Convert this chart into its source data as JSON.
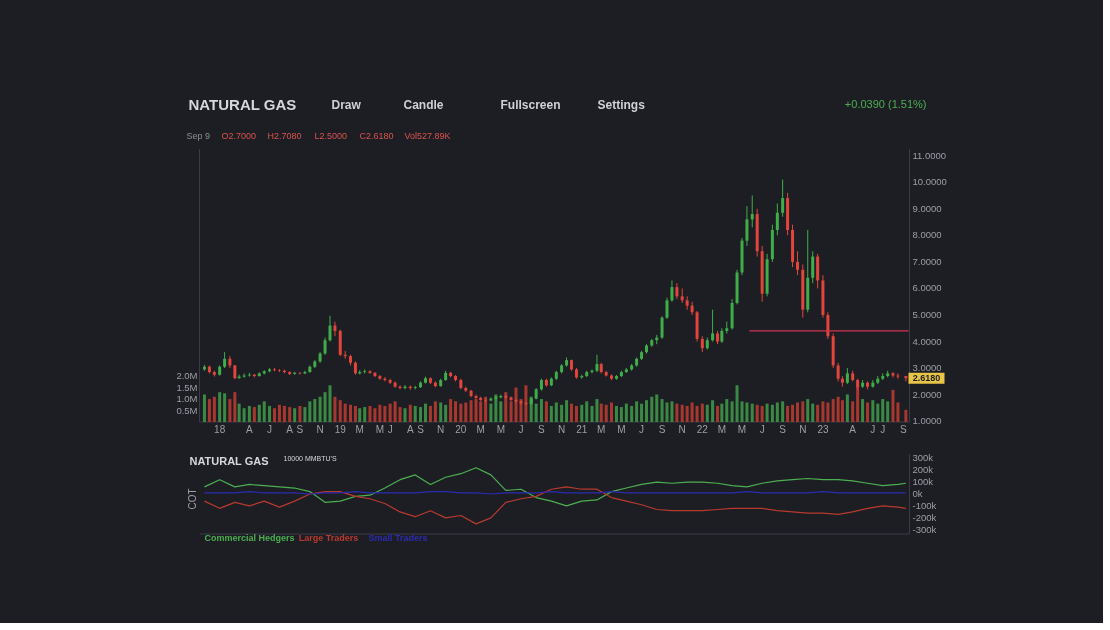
{
  "chart_data": [
    {
      "type": "candlestick",
      "title": "NATURAL GAS",
      "annotations": [
        "Draw",
        "Candle",
        "Fullscreen",
        "Settings",
        "+0.0390 (1.51%)",
        "Sep 9",
        "O2.7000",
        "H2.7080",
        "L2.5000",
        "C2.6180",
        "Vol527.89K",
        {
          "text": "2.6180",
          "y": 2.618
        }
      ],
      "x": [
        "2017-11-16",
        "2017-12-01",
        "2017-12-16",
        "2018-01-01",
        "2018-01-16",
        "2018-02-01",
        "2018-02-16",
        "2018-03-01",
        "2018-03-16",
        "2018-04-01",
        "2018-04-16",
        "2018-05-01",
        "2018-05-16",
        "2018-06-01",
        "2018-06-16",
        "2018-07-01",
        "2018-07-16",
        "2018-08-01",
        "2018-08-16",
        "2018-09-01",
        "2018-09-16",
        "2018-10-01",
        "2018-10-16",
        "2018-11-01",
        "2018-11-16",
        "2018-12-01",
        "2018-12-16",
        "2019-01-01",
        "2019-01-16",
        "2019-02-01",
        "2019-02-16",
        "2019-03-01",
        "2019-03-16",
        "2019-04-01",
        "2019-04-16",
        "2019-05-01",
        "2019-05-16",
        "2019-06-01",
        "2019-06-16",
        "2019-07-01",
        "2019-07-16",
        "2019-08-01",
        "2019-08-16",
        "2019-09-01",
        "2019-09-16",
        "2019-10-01",
        "2019-10-16",
        "2019-11-01",
        "2019-11-16",
        "2019-12-01",
        "2019-12-16",
        "2020-01-01",
        "2020-01-16",
        "2020-02-01",
        "2020-02-16",
        "2020-03-01",
        "2020-03-16",
        "2020-04-01",
        "2020-04-16",
        "2020-05-01",
        "2020-05-16",
        "2020-06-01",
        "2020-06-16",
        "2020-07-01",
        "2020-07-16",
        "2020-08-01",
        "2020-08-16",
        "2020-09-01",
        "2020-09-16",
        "2020-10-01",
        "2020-10-16",
        "2020-11-01",
        "2020-11-16",
        "2020-12-01",
        "2020-12-16",
        "2021-01-01",
        "2021-01-16",
        "2021-02-01",
        "2021-02-16",
        "2021-03-01",
        "2021-03-16",
        "2021-04-01",
        "2021-04-16",
        "2021-05-01",
        "2021-05-16",
        "2021-06-01",
        "2021-06-16",
        "2021-07-01",
        "2021-07-16",
        "2021-08-01",
        "2021-08-16",
        "2021-09-01",
        "2021-09-16",
        "2021-10-01",
        "2021-10-16",
        "2021-11-01",
        "2021-11-16",
        "2021-12-01",
        "2021-12-16",
        "2022-01-01",
        "2022-01-16",
        "2022-02-01",
        "2022-02-16",
        "2022-03-01",
        "2022-03-16",
        "2022-04-01",
        "2022-04-16",
        "2022-05-01",
        "2022-05-16",
        "2022-06-01",
        "2022-06-16",
        "2022-07-01",
        "2022-07-16",
        "2022-08-01",
        "2022-08-16",
        "2022-09-01",
        "2022-09-16",
        "2022-10-01",
        "2022-10-16",
        "2022-11-01",
        "2022-11-16",
        "2022-12-01",
        "2022-12-16",
        "2023-01-01",
        "2023-01-16",
        "2023-02-01",
        "2023-02-16",
        "2023-03-01",
        "2023-03-16",
        "2023-04-01",
        "2023-04-16",
        "2023-05-01",
        "2023-05-16",
        "2023-06-01",
        "2023-06-16",
        "2023-07-01",
        "2023-07-16",
        "2023-08-01",
        "2023-08-16",
        "2023-09-09"
      ],
      "ohlc": [
        [
          2.95,
          3.12,
          2.9,
          3.05
        ],
        [
          3.05,
          3.1,
          2.8,
          2.85
        ],
        [
          2.85,
          2.9,
          2.68,
          2.75
        ],
        [
          2.75,
          3.1,
          2.72,
          3.05
        ],
        [
          3.05,
          3.6,
          3.0,
          3.35
        ],
        [
          3.35,
          3.45,
          3.0,
          3.1
        ],
        [
          3.1,
          3.12,
          2.58,
          2.62
        ],
        [
          2.62,
          2.75,
          2.6,
          2.68
        ],
        [
          2.68,
          2.8,
          2.64,
          2.72
        ],
        [
          2.72,
          2.82,
          2.68,
          2.75
        ],
        [
          2.75,
          2.78,
          2.65,
          2.7
        ],
        [
          2.7,
          2.84,
          2.68,
          2.8
        ],
        [
          2.8,
          2.92,
          2.76,
          2.88
        ],
        [
          2.88,
          3.0,
          2.84,
          2.95
        ],
        [
          2.95,
          3.0,
          2.88,
          2.92
        ],
        [
          2.92,
          2.96,
          2.85,
          2.9
        ],
        [
          2.9,
          2.94,
          2.8,
          2.85
        ],
        [
          2.85,
          2.88,
          2.74,
          2.78
        ],
        [
          2.78,
          2.86,
          2.75,
          2.82
        ],
        [
          2.82,
          2.85,
          2.76,
          2.8
        ],
        [
          2.8,
          2.9,
          2.77,
          2.85
        ],
        [
          2.85,
          3.1,
          2.83,
          3.05
        ],
        [
          3.05,
          3.3,
          3.0,
          3.25
        ],
        [
          3.25,
          3.6,
          3.2,
          3.55
        ],
        [
          3.55,
          4.15,
          3.5,
          4.05
        ],
        [
          4.05,
          4.97,
          4.0,
          4.6
        ],
        [
          4.6,
          4.75,
          4.2,
          4.4
        ],
        [
          4.4,
          4.45,
          3.45,
          3.5
        ],
        [
          3.5,
          3.65,
          3.35,
          3.45
        ],
        [
          3.45,
          3.5,
          3.1,
          3.2
        ],
        [
          3.2,
          3.25,
          2.75,
          2.8
        ],
        [
          2.8,
          2.92,
          2.76,
          2.85
        ],
        [
          2.85,
          2.95,
          2.8,
          2.88
        ],
        [
          2.88,
          2.92,
          2.78,
          2.82
        ],
        [
          2.82,
          2.85,
          2.66,
          2.7
        ],
        [
          2.7,
          2.74,
          2.56,
          2.6
        ],
        [
          2.6,
          2.66,
          2.5,
          2.55
        ],
        [
          2.55,
          2.6,
          2.4,
          2.45
        ],
        [
          2.45,
          2.5,
          2.26,
          2.3
        ],
        [
          2.3,
          2.35,
          2.2,
          2.25
        ],
        [
          2.25,
          2.36,
          2.2,
          2.3
        ],
        [
          2.3,
          2.34,
          2.18,
          2.25
        ],
        [
          2.25,
          2.33,
          2.2,
          2.28
        ],
        [
          2.28,
          2.5,
          2.25,
          2.45
        ],
        [
          2.45,
          2.68,
          2.42,
          2.62
        ],
        [
          2.62,
          2.65,
          2.4,
          2.45
        ],
        [
          2.45,
          2.5,
          2.28,
          2.32
        ],
        [
          2.32,
          2.6,
          2.3,
          2.55
        ],
        [
          2.55,
          2.9,
          2.52,
          2.82
        ],
        [
          2.82,
          2.86,
          2.65,
          2.7
        ],
        [
          2.7,
          2.74,
          2.5,
          2.55
        ],
        [
          2.55,
          2.6,
          2.2,
          2.25
        ],
        [
          2.25,
          2.3,
          2.1,
          2.15
        ],
        [
          2.15,
          2.18,
          1.9,
          1.95
        ],
        [
          1.95,
          2.0,
          1.84,
          1.88
        ],
        [
          1.88,
          1.92,
          1.76,
          1.8
        ],
        [
          1.8,
          1.84,
          1.72,
          1.78
        ],
        [
          1.78,
          1.9,
          1.75,
          1.85
        ],
        [
          1.85,
          1.95,
          1.82,
          1.9
        ],
        [
          1.9,
          2.0,
          1.86,
          1.95
        ],
        [
          1.95,
          1.98,
          1.85,
          1.9
        ],
        [
          1.9,
          1.93,
          1.76,
          1.8
        ],
        [
          1.8,
          1.84,
          1.7,
          1.75
        ],
        [
          1.75,
          1.78,
          1.62,
          1.68
        ],
        [
          1.68,
          1.72,
          1.6,
          1.65
        ],
        [
          1.65,
          1.9,
          1.62,
          1.85
        ],
        [
          1.85,
          2.25,
          1.82,
          2.2
        ],
        [
          2.2,
          2.6,
          2.15,
          2.55
        ],
        [
          2.55,
          2.6,
          2.3,
          2.35
        ],
        [
          2.35,
          2.65,
          2.32,
          2.6
        ],
        [
          2.6,
          2.9,
          2.55,
          2.85
        ],
        [
          2.85,
          3.15,
          2.8,
          3.1
        ],
        [
          3.1,
          3.4,
          3.05,
          3.3
        ],
        [
          3.3,
          3.32,
          2.9,
          2.95
        ],
        [
          2.95,
          3.0,
          2.6,
          2.65
        ],
        [
          2.65,
          2.75,
          2.6,
          2.7
        ],
        [
          2.7,
          2.9,
          2.66,
          2.85
        ],
        [
          2.85,
          2.95,
          2.8,
          2.9
        ],
        [
          2.9,
          3.5,
          2.85,
          3.15
        ],
        [
          3.15,
          3.2,
          2.8,
          2.85
        ],
        [
          2.85,
          2.9,
          2.68,
          2.72
        ],
        [
          2.72,
          2.76,
          2.55,
          2.6
        ],
        [
          2.6,
          2.74,
          2.56,
          2.7
        ],
        [
          2.7,
          2.9,
          2.66,
          2.85
        ],
        [
          2.85,
          3.0,
          2.82,
          2.95
        ],
        [
          2.95,
          3.15,
          2.9,
          3.1
        ],
        [
          3.1,
          3.4,
          3.05,
          3.35
        ],
        [
          3.35,
          3.65,
          3.3,
          3.6
        ],
        [
          3.6,
          3.9,
          3.55,
          3.85
        ],
        [
          3.85,
          4.1,
          3.8,
          4.05
        ],
        [
          4.05,
          4.25,
          3.9,
          4.15
        ],
        [
          4.15,
          4.95,
          4.1,
          4.9
        ],
        [
          4.9,
          5.65,
          4.85,
          5.55
        ],
        [
          5.55,
          6.3,
          5.5,
          6.05
        ],
        [
          6.05,
          6.2,
          5.6,
          5.7
        ],
        [
          5.7,
          6.0,
          5.45,
          5.55
        ],
        [
          5.55,
          5.7,
          5.2,
          5.35
        ],
        [
          5.35,
          5.5,
          5.0,
          5.1
        ],
        [
          5.1,
          5.15,
          4.0,
          4.1
        ],
        [
          4.1,
          4.2,
          3.6,
          3.75
        ],
        [
          3.75,
          4.15,
          3.7,
          4.05
        ],
        [
          4.05,
          5.2,
          4.0,
          4.3
        ],
        [
          4.3,
          4.4,
          3.9,
          4.0
        ],
        [
          4.0,
          4.5,
          3.95,
          4.4
        ],
        [
          4.4,
          4.75,
          4.3,
          4.5
        ],
        [
          4.5,
          5.6,
          4.45,
          5.45
        ],
        [
          5.45,
          6.7,
          5.4,
          6.6
        ],
        [
          6.6,
          7.9,
          6.5,
          7.8
        ],
        [
          7.8,
          9.1,
          7.6,
          8.6
        ],
        [
          8.6,
          9.5,
          8.3,
          8.8
        ],
        [
          8.8,
          9.0,
          7.2,
          7.4
        ],
        [
          7.4,
          7.6,
          5.5,
          5.8
        ],
        [
          5.8,
          7.3,
          5.7,
          7.1
        ],
        [
          7.1,
          8.4,
          7.0,
          8.2
        ],
        [
          8.2,
          9.2,
          8.0,
          8.85
        ],
        [
          8.85,
          10.1,
          8.7,
          9.4
        ],
        [
          9.4,
          9.6,
          8.0,
          8.2
        ],
        [
          8.2,
          8.4,
          6.8,
          7.0
        ],
        [
          7.0,
          7.4,
          6.5,
          6.7
        ],
        [
          6.7,
          6.9,
          4.9,
          5.2
        ],
        [
          5.2,
          8.2,
          5.1,
          6.4
        ],
        [
          6.4,
          7.4,
          6.2,
          7.2
        ],
        [
          7.2,
          7.3,
          6.0,
          6.3
        ],
        [
          6.3,
          6.5,
          4.9,
          5.0
        ],
        [
          5.0,
          5.1,
          4.1,
          4.2
        ],
        [
          4.2,
          4.3,
          3.0,
          3.1
        ],
        [
          3.1,
          3.2,
          2.5,
          2.6
        ],
        [
          2.6,
          2.7,
          2.3,
          2.45
        ],
        [
          2.45,
          3.0,
          2.4,
          2.8
        ],
        [
          2.8,
          2.9,
          2.5,
          2.55
        ],
        [
          2.55,
          2.6,
          2.2,
          2.3
        ],
        [
          2.3,
          2.55,
          2.25,
          2.45
        ],
        [
          2.45,
          2.5,
          2.2,
          2.3
        ],
        [
          2.3,
          2.55,
          2.26,
          2.45
        ],
        [
          2.45,
          2.7,
          2.4,
          2.6
        ],
        [
          2.6,
          2.8,
          2.55,
          2.7
        ],
        [
          2.7,
          2.9,
          2.65,
          2.8
        ],
        [
          2.8,
          2.85,
          2.65,
          2.72
        ],
        [
          2.72,
          2.8,
          2.6,
          2.68
        ],
        [
          2.7,
          2.708,
          2.5,
          2.618
        ]
      ],
      "colors": [
        "#3fae49",
        "#e2453c",
        "#e2453c",
        "#3fae49",
        "#3fae49",
        "#e2453c",
        "#e2453c",
        "#3fae49",
        "#3fae49",
        "#3fae49",
        "#e2453c",
        "#3fae49",
        "#3fae49",
        "#3fae49",
        "#e2453c",
        "#e2453c",
        "#e2453c",
        "#e2453c",
        "#3fae49",
        "#e2453c",
        "#3fae49",
        "#3fae49",
        "#3fae49",
        "#3fae49",
        "#3fae49",
        "#3fae49",
        "#e2453c",
        "#e2453c",
        "#e2453c",
        "#e2453c",
        "#e2453c",
        "#3fae49",
        "#3fae49",
        "#e2453c",
        "#e2453c",
        "#e2453c",
        "#e2453c",
        "#e2453c",
        "#e2453c",
        "#e2453c",
        "#3fae49",
        "#e2453c",
        "#3fae49",
        "#3fae49",
        "#3fae49",
        "#e2453c",
        "#e2453c",
        "#3fae49",
        "#3fae49",
        "#e2453c",
        "#e2453c",
        "#e2453c",
        "#e2453c",
        "#e2453c",
        "#e2453c",
        "#e2453c",
        "#e2453c",
        "#3fae49",
        "#3fae49",
        "#3fae49",
        "#e2453c",
        "#e2453c",
        "#e2453c",
        "#e2453c",
        "#e2453c",
        "#3fae49",
        "#3fae49",
        "#3fae49",
        "#e2453c",
        "#3fae49",
        "#3fae49",
        "#3fae49",
        "#3fae49",
        "#e2453c",
        "#e2453c",
        "#3fae49",
        "#3fae49",
        "#3fae49",
        "#3fae49",
        "#e2453c",
        "#e2453c",
        "#e2453c",
        "#3fae49",
        "#3fae49",
        "#3fae49",
        "#3fae49",
        "#3fae49",
        "#3fae49",
        "#3fae49",
        "#3fae49",
        "#3fae49",
        "#3fae49",
        "#3fae49",
        "#3fae49",
        "#e2453c",
        "#e2453c",
        "#e2453c",
        "#e2453c",
        "#e2453c",
        "#e2453c",
        "#3fae49",
        "#3fae49",
        "#e2453c",
        "#3fae49",
        "#3fae49",
        "#3fae49",
        "#3fae49",
        "#3fae49",
        "#3fae49",
        "#3fae49",
        "#e2453c",
        "#e2453c",
        "#3fae49",
        "#3fae49",
        "#3fae49",
        "#3fae49",
        "#e2453c",
        "#e2453c",
        "#e2453c",
        "#e2453c",
        "#3fae49",
        "#3fae49",
        "#e2453c",
        "#e2453c",
        "#e2453c",
        "#e2453c",
        "#e2453c",
        "#e2453c",
        "#3fae49",
        "#e2453c",
        "#e2453c",
        "#3fae49",
        "#e2453c",
        "#3fae49",
        "#3fae49",
        "#3fae49",
        "#3fae49",
        "#e2453c",
        "#e2453c",
        "#e2453c"
      ],
      "series": [
        {
          "type": "bar",
          "axis": "y2",
          "values": [
            1.2,
            1.0,
            1.1,
            1.3,
            1.25,
            1.0,
            1.3,
            0.8,
            0.6,
            0.7,
            0.65,
            0.75,
            0.9,
            0.7,
            0.6,
            0.75,
            0.7,
            0.65,
            0.6,
            0.7,
            0.65,
            0.9,
            1.0,
            1.1,
            1.3,
            1.6,
            1.1,
            0.95,
            0.8,
            0.75,
            0.7,
            0.6,
            0.65,
            0.7,
            0.6,
            0.75,
            0.7,
            0.8,
            0.9,
            0.65,
            0.6,
            0.75,
            0.7,
            0.65,
            0.8,
            0.7,
            0.9,
            0.85,
            0.75,
            1.0,
            0.9,
            0.8,
            0.85,
            0.95,
            1.0,
            0.9,
            1.1,
            0.8,
            1.2,
            0.9,
            1.3,
            0.9,
            1.5,
            1.0,
            1.6,
            1.1,
            0.8,
            1.0,
            0.9,
            0.7,
            0.85,
            0.75,
            0.95,
            0.8,
            0.7,
            0.75,
            0.9,
            0.7,
            1.0,
            0.8,
            0.75,
            0.85,
            0.7,
            0.65,
            0.8,
            0.7,
            0.9,
            0.8,
            0.95,
            1.1,
            1.2,
            1.0,
            0.85,
            0.9,
            0.8,
            0.75,
            0.7,
            0.85,
            0.7,
            0.8,
            0.75,
            0.95,
            0.7,
            0.8,
            1.0,
            0.9,
            1.6,
            0.9,
            0.85,
            0.8,
            0.75,
            0.7,
            0.8,
            0.75,
            0.85,
            0.9,
            0.7,
            0.75,
            0.85,
            0.9,
            1.0,
            0.8,
            0.75,
            0.9,
            0.85,
            1.0,
            1.1,
            0.95,
            1.2,
            0.9,
            1.6,
            1.0,
            0.85,
            0.95,
            0.8,
            1.0,
            0.9,
            1.4,
            0.85,
            0.53
          ],
          "colors": [
            "#3a8a44",
            "#a8382f",
            "#a8382f",
            "#3a8a44",
            "#3a8a44",
            "#a8382f",
            "#a8382f",
            "#3a8a44",
            "#3a8a44",
            "#3a8a44",
            "#a8382f",
            "#3a8a44",
            "#3a8a44",
            "#3a8a44",
            "#a8382f",
            "#a8382f",
            "#a8382f",
            "#a8382f",
            "#3a8a44",
            "#a8382f",
            "#3a8a44",
            "#3a8a44",
            "#3a8a44",
            "#3a8a44",
            "#3a8a44",
            "#3a8a44",
            "#a8382f",
            "#a8382f",
            "#a8382f",
            "#a8382f",
            "#a8382f",
            "#3a8a44",
            "#3a8a44",
            "#a8382f",
            "#a8382f",
            "#a8382f",
            "#a8382f",
            "#a8382f",
            "#a8382f",
            "#a8382f",
            "#3a8a44",
            "#a8382f",
            "#3a8a44",
            "#3a8a44",
            "#3a8a44",
            "#a8382f",
            "#a8382f",
            "#3a8a44",
            "#3a8a44",
            "#a8382f",
            "#a8382f",
            "#a8382f",
            "#a8382f",
            "#a8382f",
            "#a8382f",
            "#a8382f",
            "#a8382f",
            "#3a8a44",
            "#3a8a44",
            "#3a8a44",
            "#a8382f",
            "#a8382f",
            "#a8382f",
            "#a8382f",
            "#a8382f",
            "#3a8a44",
            "#3a8a44",
            "#3a8a44",
            "#a8382f",
            "#3a8a44",
            "#3a8a44",
            "#3a8a44",
            "#3a8a44",
            "#a8382f",
            "#a8382f",
            "#3a8a44",
            "#3a8a44",
            "#3a8a44",
            "#3a8a44",
            "#a8382f",
            "#a8382f",
            "#a8382f",
            "#3a8a44",
            "#3a8a44",
            "#3a8a44",
            "#3a8a44",
            "#3a8a44",
            "#3a8a44",
            "#3a8a44",
            "#3a8a44",
            "#3a8a44",
            "#3a8a44",
            "#3a8a44",
            "#3a8a44",
            "#a8382f",
            "#a8382f",
            "#a8382f",
            "#a8382f",
            "#a8382f",
            "#a8382f",
            "#3a8a44",
            "#3a8a44",
            "#a8382f",
            "#3a8a44",
            "#3a8a44",
            "#3a8a44",
            "#3a8a44",
            "#3a8a44",
            "#3a8a44",
            "#3a8a44",
            "#a8382f",
            "#a8382f",
            "#3a8a44",
            "#3a8a44",
            "#3a8a44",
            "#3a8a44",
            "#a8382f",
            "#a8382f",
            "#a8382f",
            "#a8382f",
            "#3a8a44",
            "#3a8a44",
            "#a8382f",
            "#a8382f",
            "#a8382f",
            "#a8382f",
            "#a8382f",
            "#a8382f",
            "#3a8a44",
            "#a8382f",
            "#a8382f",
            "#3a8a44",
            "#a8382f",
            "#3a8a44",
            "#3a8a44",
            "#3a8a44",
            "#3a8a44",
            "#a8382f",
            "#a8382f",
            "#a8382f"
          ]
        },
        {
          "type": "line",
          "x": [
            "2022-05-25",
            "2023-09-16"
          ],
          "values": [
            4.4,
            4.4
          ],
          "color": "#d0334f"
        }
      ],
      "xlim": [
        "2017-11-01",
        "2023-09-20"
      ],
      "xticks": [
        {
          "value": "2018-01-01",
          "label": "18"
        },
        {
          "value": "2018-04-01",
          "label": "A"
        },
        {
          "value": "2018-06-01",
          "label": "J"
        },
        {
          "value": "2018-08-01",
          "label": "A"
        },
        {
          "value": "2018-09-01",
          "label": "S"
        },
        {
          "value": "2018-11-01",
          "label": "N"
        },
        {
          "value": "2019-01-01",
          "label": "19"
        },
        {
          "value": "2019-03-01",
          "label": "M"
        },
        {
          "value": "2019-05-01",
          "label": "M"
        },
        {
          "value": "2019-06-01",
          "label": "J"
        },
        {
          "value": "2019-08-01",
          "label": "A"
        },
        {
          "value": "2019-09-01",
          "label": "S"
        },
        {
          "value": "2019-11-01",
          "label": "N"
        },
        {
          "value": "2020-01-01",
          "label": "20"
        },
        {
          "value": "2020-03-01",
          "label": "M"
        },
        {
          "value": "2020-05-01",
          "label": "M"
        },
        {
          "value": "2020-07-01",
          "label": "J"
        },
        {
          "value": "2020-09-01",
          "label": "S"
        },
        {
          "value": "2020-11-01",
          "label": "N"
        },
        {
          "value": "2021-01-01",
          "label": "21"
        },
        {
          "value": "2021-03-01",
          "label": "M"
        },
        {
          "value": "2021-05-01",
          "label": "M"
        },
        {
          "value": "2021-07-01",
          "label": "J"
        },
        {
          "value": "2021-09-01",
          "label": "S"
        },
        {
          "value": "2021-11-01",
          "label": "N"
        },
        {
          "value": "2022-01-01",
          "label": "22"
        },
        {
          "value": "2022-03-01",
          "label": "M"
        },
        {
          "value": "2022-05-01",
          "label": "M"
        },
        {
          "value": "2022-07-01",
          "label": "J"
        },
        {
          "value": "2022-09-01",
          "label": "S"
        },
        {
          "value": "2022-11-01",
          "label": "N"
        },
        {
          "value": "2023-01-01",
          "label": "23"
        },
        {
          "value": "2023-04-01",
          "label": "A"
        },
        {
          "value": "2023-06-01",
          "label": "J"
        },
        {
          "value": "2023-07-01",
          "label": "J"
        },
        {
          "value": "2023-09-01",
          "label": "S"
        }
      ],
      "ylim": [
        0.97,
        11.25
      ],
      "yticks": [
        {
          "value": 1,
          "label": "1.0000"
        },
        {
          "value": 2,
          "label": "2.0000"
        },
        {
          "value": 3,
          "label": "3.0000"
        },
        {
          "value": 4,
          "label": "4.0000"
        },
        {
          "value": 5,
          "label": "5.0000"
        },
        {
          "value": 6,
          "label": "6.0000"
        },
        {
          "value": 7,
          "label": "7.0000"
        },
        {
          "value": 8,
          "label": "8.0000"
        },
        {
          "value": 9,
          "label": "9.0000"
        },
        {
          "value": 10,
          "label": "10.0000"
        },
        {
          "value": 11,
          "label": "11.0000"
        }
      ],
      "y2lim": [
        0,
        11.9
      ],
      "y2ticks": [
        {
          "value": 0.5,
          "label": "0.5M"
        },
        {
          "value": 1,
          "label": "1.0M"
        },
        {
          "value": 1.5,
          "label": "1.5M"
        },
        {
          "value": 2,
          "label": "2.0M"
        }
      ]
    },
    {
      "type": "line",
      "title": "NATURAL GAS",
      "subtitle": "10000 MMBTU'S",
      "ylabel": "COT",
      "x": [
        "2017-11-16",
        "2018-01-01",
        "2018-02-16",
        "2018-04-01",
        "2018-05-16",
        "2018-07-01",
        "2018-08-16",
        "2018-10-01",
        "2018-11-16",
        "2019-01-01",
        "2019-02-16",
        "2019-04-01",
        "2019-05-16",
        "2019-07-01",
        "2019-08-16",
        "2019-10-01",
        "2019-11-16",
        "2020-01-01",
        "2020-02-16",
        "2020-04-01",
        "2020-05-16",
        "2020-07-01",
        "2020-08-16",
        "2020-10-01",
        "2020-11-16",
        "2021-01-01",
        "2021-02-16",
        "2021-04-01",
        "2021-05-16",
        "2021-07-01",
        "2021-08-16",
        "2021-10-01",
        "2021-11-16",
        "2022-01-01",
        "2022-02-16",
        "2022-04-01",
        "2022-05-16",
        "2022-07-01",
        "2022-08-16",
        "2022-10-01",
        "2022-11-16",
        "2023-01-01",
        "2023-02-16",
        "2023-04-01",
        "2023-05-16",
        "2023-07-01",
        "2023-08-16",
        "2023-09-09"
      ],
      "series": [
        {
          "name": "Commercial Hedgers",
          "color": "#4caf50",
          "values": [
            60,
            120,
            60,
            80,
            70,
            60,
            50,
            20,
            -70,
            -60,
            -20,
            -10,
            50,
            120,
            160,
            80,
            140,
            170,
            220,
            160,
            30,
            40,
            -30,
            -60,
            -100,
            -60,
            -50,
            20,
            50,
            80,
            100,
            90,
            100,
            100,
            90,
            70,
            60,
            90,
            110,
            120,
            130,
            120,
            120,
            110,
            90,
            70,
            80,
            90
          ]
        },
        {
          "name": "Large Traders",
          "color": "#b8392e",
          "values": [
            -60,
            -120,
            -70,
            -100,
            -60,
            -110,
            -60,
            0,
            20,
            20,
            -20,
            -40,
            -80,
            -150,
            -190,
            -140,
            -200,
            -180,
            -250,
            -200,
            -70,
            -40,
            -20,
            40,
            60,
            40,
            40,
            -30,
            -60,
            -90,
            -130,
            -140,
            -140,
            -140,
            -130,
            -120,
            -120,
            -120,
            -140,
            -150,
            -160,
            -160,
            -170,
            -150,
            -120,
            -100,
            -110,
            -120
          ]
        },
        {
          "name": "Small Traders",
          "color": "#2b2bb0",
          "values": [
            10,
            10,
            10,
            20,
            10,
            10,
            10,
            0,
            10,
            10,
            20,
            10,
            10,
            10,
            10,
            20,
            20,
            10,
            10,
            0,
            10,
            10,
            10,
            20,
            10,
            10,
            10,
            20,
            10,
            10,
            10,
            10,
            10,
            10,
            10,
            10,
            20,
            10,
            10,
            10,
            10,
            20,
            10,
            10,
            10,
            10,
            10,
            10
          ]
        }
      ],
      "xlim": [
        "2017-11-01",
        "2023-09-20"
      ],
      "ylim": [
        -335,
        335
      ],
      "yticks": [
        {
          "value": 300,
          "label": "300k"
        },
        {
          "value": 200,
          "label": "200k"
        },
        {
          "value": 100,
          "label": "100k"
        },
        {
          "value": 0,
          "label": "0k"
        },
        {
          "value": -100,
          "label": "-100k"
        },
        {
          "value": -200,
          "label": "-200k"
        },
        {
          "value": -300,
          "label": "-300k"
        }
      ],
      "tick_labels": "y",
      "legend": "bottom left"
    }
  ]
}
